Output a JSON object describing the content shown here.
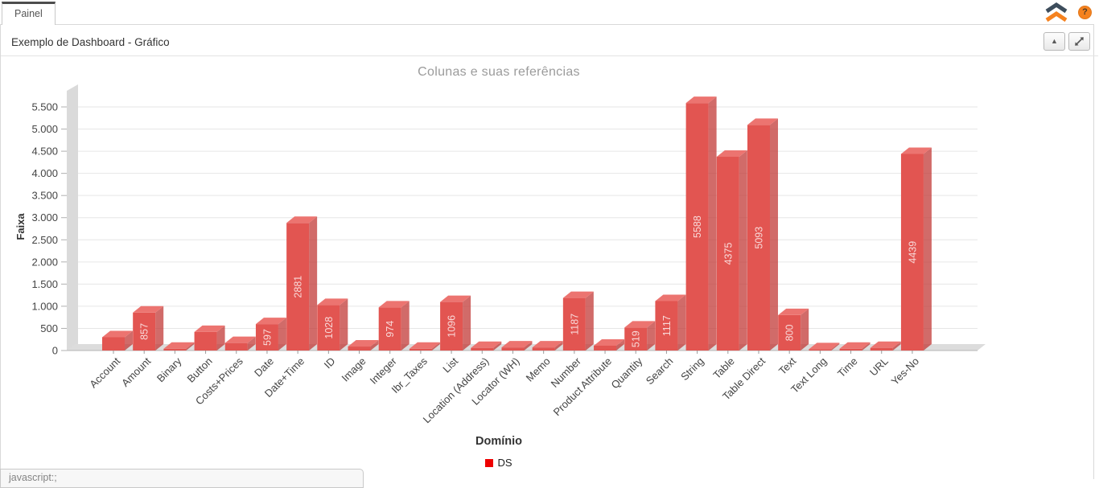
{
  "tab_bar": {
    "tabs": [
      {
        "label": "Painel",
        "active": true
      }
    ]
  },
  "top_right": {
    "logo_icon": "double-chevron-up-icon",
    "logo_colors": {
      "top_chevron": "#3d4d5c",
      "bottom_chevron": "#f5821f"
    },
    "help_badge": {
      "label": "?",
      "color": "#f5821f",
      "icon": "question-mark-icon"
    }
  },
  "panel": {
    "title": "Exemplo de Dashboard - Gráfico",
    "toolbar": [
      {
        "name": "collapse",
        "icon": "triangle-up-icon",
        "glyph": "▲"
      },
      {
        "name": "restore",
        "icon": "compress-arrows-icon"
      }
    ]
  },
  "status_bar": {
    "text": "javascript:;"
  },
  "chart_data": {
    "type": "bar",
    "effect": "3d",
    "title": "Colunas e suas referências",
    "xlabel": "Domínio",
    "ylabel": "Faixa",
    "grid": true,
    "ylim": [
      0,
      6000
    ],
    "ytick_values": [
      0,
      500,
      1000,
      1500,
      2000,
      2500,
      3000,
      3500,
      4000,
      4500,
      5000,
      5500
    ],
    "ytick_labels": [
      "0",
      "500",
      "1.000",
      "1.500",
      "2.000",
      "2.500",
      "3.000",
      "3.500",
      "4.000",
      "4.500",
      "5.000",
      "5.500"
    ],
    "categories": [
      "Account",
      "Amount",
      "Binary",
      "Button",
      "Costs+Prices",
      "Date",
      "Date+Time",
      "ID",
      "Image",
      "Integer",
      "Ibr_Taxes",
      "List",
      "Location (Address)",
      "Locator (WH)",
      "Memo",
      "Number",
      "Product Attribute",
      "Quantity",
      "Search",
      "String",
      "Table",
      "Table Direct",
      "Text",
      "Text Long",
      "Time",
      "URL",
      "Yes-No"
    ],
    "values": [
      300,
      857,
      40,
      420,
      170,
      597,
      2881,
      1028,
      90,
      974,
      40,
      1096,
      60,
      70,
      70,
      1187,
      110,
      519,
      1117,
      5588,
      4375,
      5093,
      800,
      30,
      40,
      60,
      4439
    ],
    "bar_labels": [
      "",
      "857",
      "",
      "",
      "",
      "597",
      "2881",
      "1028",
      "",
      "974",
      "",
      "1096",
      "",
      "",
      "",
      "1187",
      "",
      "519",
      "1117",
      "5588",
      "4375",
      "5093",
      "800",
      "",
      "",
      "",
      "4439"
    ],
    "legend": {
      "position": "bottom",
      "entries": [
        {
          "label": "DS",
          "color": "#ee0000"
        }
      ]
    },
    "style": {
      "bar_front": "#e25551",
      "bar_top": "#ec7470",
      "bar_side": "rgba(193,57,55,0.75)",
      "wall": "#dadada",
      "floor": "#dcdcdc",
      "gridline": "#e6e6e6"
    }
  }
}
